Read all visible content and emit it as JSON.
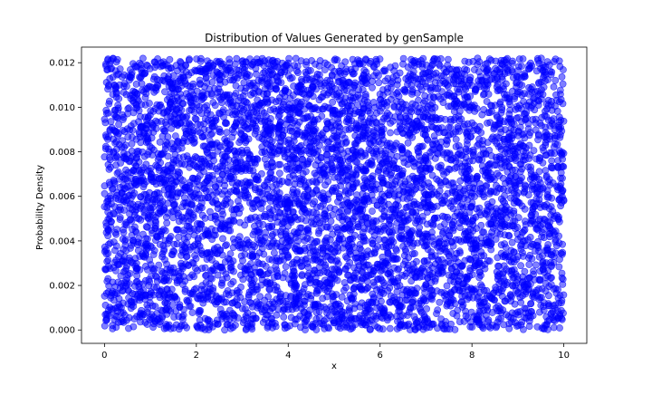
{
  "chart_data": {
    "type": "scatter",
    "title": "Distribution of Values Generated by genSample",
    "xlabel": "x",
    "ylabel": "Probability Density",
    "xlim": [
      -0.5,
      10.5
    ],
    "ylim": [
      -0.0006,
      0.0127
    ],
    "xticks": [
      0,
      2,
      4,
      6,
      8,
      10
    ],
    "yticks": [
      0.0,
      0.002,
      0.004,
      0.006,
      0.008,
      0.01,
      0.012
    ],
    "xtick_labels": [
      "0",
      "2",
      "4",
      "6",
      "8",
      "10"
    ],
    "ytick_labels": [
      "0.000",
      "0.002",
      "0.004",
      "0.006",
      "0.008",
      "0.010",
      "0.012"
    ],
    "grid": false,
    "legend": "none",
    "marker_color": "#0000ff",
    "marker_alpha": 0.5,
    "distribution": {
      "x_range": [
        0,
        10
      ],
      "y_range": [
        0.0,
        0.0122
      ],
      "approx_point_count": 6000
    }
  }
}
